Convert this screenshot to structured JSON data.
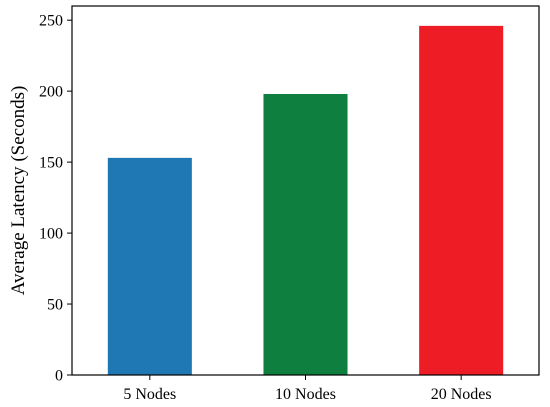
{
  "chart_data": {
    "type": "bar",
    "title": "",
    "xlabel": "",
    "ylabel": "Average Latency (Seconds)",
    "categories": [
      "5 Nodes",
      "10 Nodes",
      "20 Nodes"
    ],
    "values": [
      153,
      198,
      246
    ],
    "colors": [
      "#1f77b4",
      "#0f7f40",
      "#ee1c25"
    ],
    "ylim": [
      0,
      260
    ],
    "yticks": [
      0,
      50,
      100,
      150,
      200,
      250
    ],
    "grid": false,
    "legend": "none"
  }
}
